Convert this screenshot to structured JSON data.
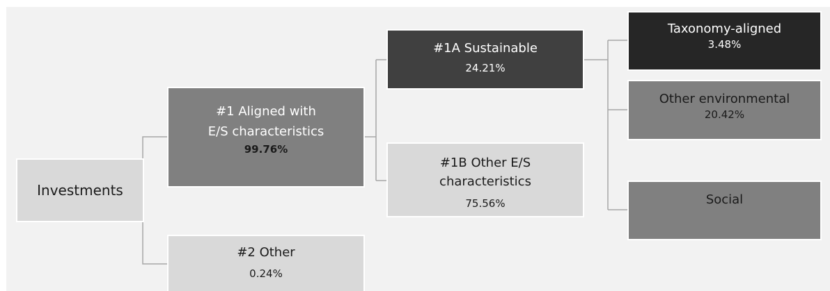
{
  "diagram": {
    "investments": {
      "label": "Investments"
    },
    "aligned": {
      "label_line1": "#1 Aligned with",
      "label_line2": "E/S characteristics",
      "value": "99.76%"
    },
    "other": {
      "label": "#2 Other",
      "value": "0.24%"
    },
    "sustainable": {
      "label": "#1A Sustainable",
      "value": "24.21%"
    },
    "other_es": {
      "label_line1": "#1B Other E/S",
      "label_line2": "characteristics",
      "value": "75.56%"
    },
    "taxonomy": {
      "label": "Taxonomy-aligned",
      "value": "3.48%"
    },
    "other_env": {
      "label": "Other environmental",
      "value": "20.42%"
    },
    "social": {
      "label": "Social"
    }
  },
  "colors": {
    "background": "#f2f2f2",
    "light_box": "#d9d9d9",
    "medium_box": "#808080",
    "dark_box": "#404040",
    "darkest_box": "#262626",
    "box_border": "#ffffff",
    "connector": "#a6a6a6"
  }
}
